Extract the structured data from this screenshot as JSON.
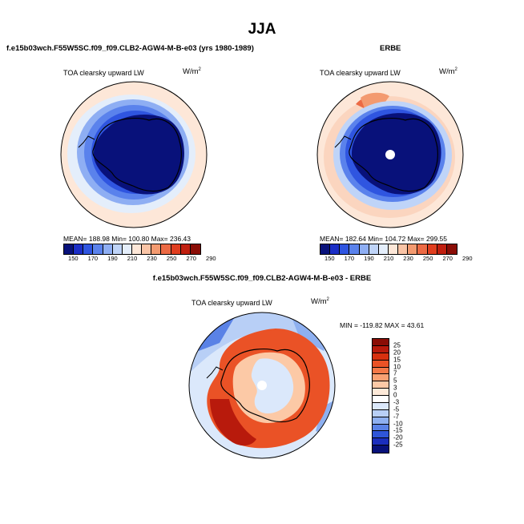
{
  "title": "JJA",
  "panels": {
    "model": {
      "subtitle": "f.e15b03wch.F55W5SC.f09_f09.CLB2-AGW4-M-B-e03 (yrs 1980-1989)",
      "field": "TOA clearsky upward LW",
      "units_base": "W/m",
      "units_exp": "2",
      "stats": "MEAN= 188.98   Min= 100.80   Max= 236.43"
    },
    "obs": {
      "subtitle": "ERBE",
      "field": "TOA clearsky upward LW",
      "units_base": "W/m",
      "units_exp": "2",
      "stats": "MEAN= 182.64   Min= 104.72   Max= 299.55"
    },
    "diff": {
      "subtitle": "f.e15b03wch.F55W5SC.f09_f09.CLB2-AGW4-M-B-e03 - ERBE",
      "field": "TOA clearsky upward LW",
      "units_base": "W/m",
      "units_exp": "2",
      "stats": "MIN = -119.82  MAX =  43.61"
    }
  },
  "colorbar_abs": {
    "colors": [
      "#08117a",
      "#1b2ec6",
      "#2f55e0",
      "#5a82ec",
      "#8eaef3",
      "#bfd4f8",
      "#e4eefb",
      "#fde7d8",
      "#f9c4a6",
      "#f39a70",
      "#ec6a44",
      "#e03e1f",
      "#c01f0f",
      "#8a0d06"
    ],
    "tick_labels": [
      "150",
      "170",
      "190",
      "210",
      "230",
      "250",
      "270",
      "290"
    ]
  },
  "colorbar_diff": {
    "colors": [
      "#8a0d06",
      "#b81a0c",
      "#d7300f",
      "#ea5226",
      "#f47847",
      "#f9a173",
      "#fcc9a6",
      "#fde9d8",
      "#ffffff",
      "#dbe8fb",
      "#b8cff6",
      "#8eb0f0",
      "#5a82e6",
      "#2f55d8",
      "#1b2ebd",
      "#08117a"
    ],
    "labels": [
      "25",
      "20",
      "15",
      "10",
      "7",
      "5",
      "3",
      "0",
      "-3",
      "-5",
      "-7",
      "-10",
      "-15",
      "-20",
      "-25"
    ]
  }
}
